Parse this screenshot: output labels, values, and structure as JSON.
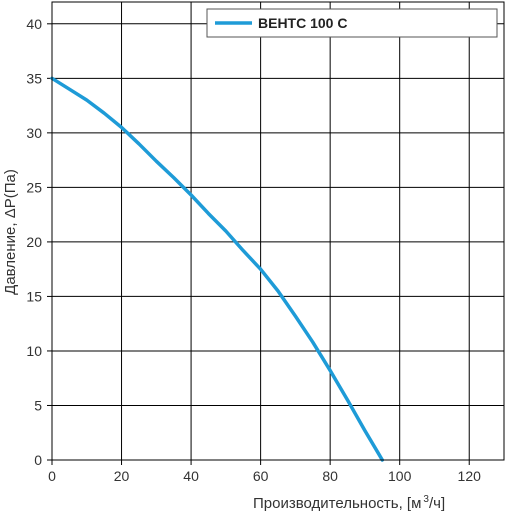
{
  "chart_data": {
    "type": "line",
    "xlabel": "Производительность, [м",
    "xlabel_sup": "3",
    "xlabel_tail": "/ч]",
    "ylabel": "Давление, ΔP(Па)",
    "xlim": [
      0,
      130
    ],
    "ylim": [
      0,
      42
    ],
    "x_ticks": [
      0,
      20,
      40,
      60,
      80,
      100,
      120
    ],
    "y_ticks": [
      0,
      5,
      10,
      15,
      20,
      25,
      30,
      35,
      40
    ],
    "grid": true,
    "legend": "top-right",
    "series": [
      {
        "name": "ВЕНТС 100 С",
        "color": "#1e9bd7",
        "x": [
          0,
          5,
          10,
          15,
          20,
          25,
          30,
          35,
          40,
          45,
          50,
          55,
          60,
          65,
          70,
          75,
          80,
          85,
          90,
          95
        ],
        "y": [
          35,
          34,
          33,
          31.8,
          30.5,
          29,
          27.4,
          25.9,
          24.3,
          22.6,
          21,
          19.2,
          17.5,
          15.5,
          13.2,
          10.8,
          8.2,
          5.5,
          2.7,
          0
        ]
      }
    ]
  }
}
